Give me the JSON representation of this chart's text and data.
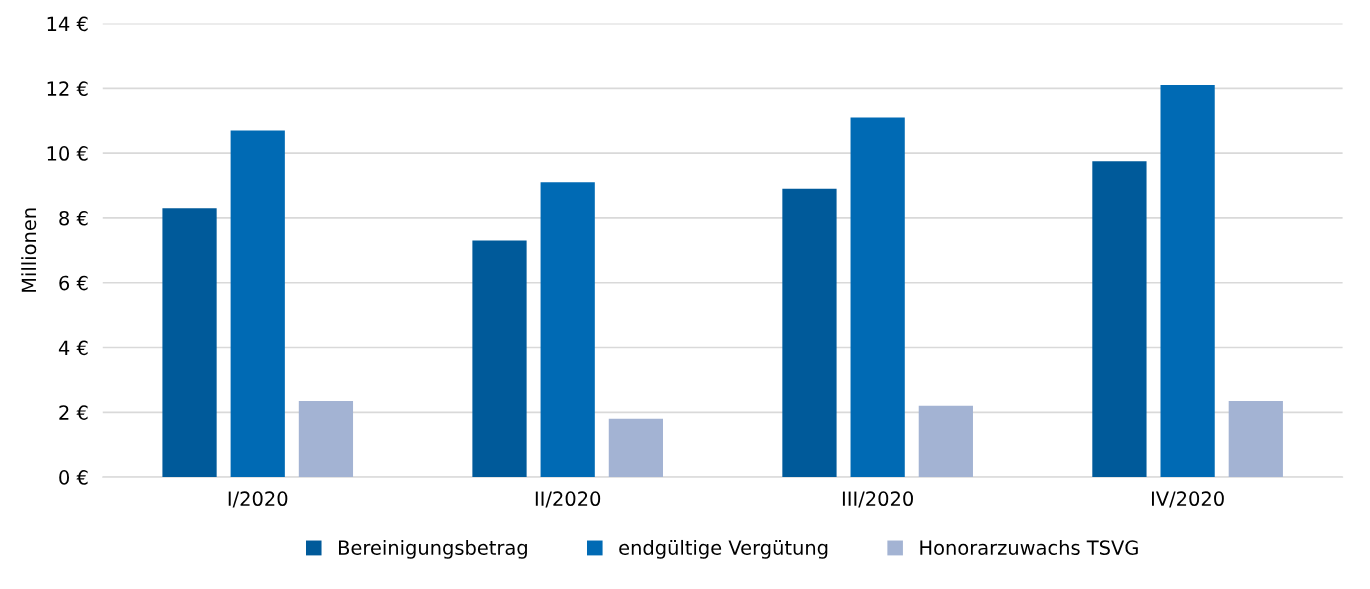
{
  "chart_data": {
    "type": "bar",
    "ylabel": "Millionen",
    "categories": [
      "I/2020",
      "II/2020",
      "III/2020",
      "IV/2020"
    ],
    "series": [
      {
        "name": "Bereinigungsbetrag",
        "color": "#005a9a",
        "values": [
          8.3,
          7.3,
          8.9,
          9.75
        ]
      },
      {
        "name": "endgültige Vergütung",
        "color": "#006ab4",
        "values": [
          10.7,
          9.1,
          11.1,
          12.1
        ]
      },
      {
        "name": "Honorarzuwachs TSVG",
        "color": "#a3b3d3",
        "values": [
          2.35,
          1.8,
          2.2,
          2.35
        ]
      }
    ],
    "ylim": [
      0,
      14
    ],
    "yticks": [
      {
        "value": 0,
        "label": "0 €"
      },
      {
        "value": 2,
        "label": "2 €"
      },
      {
        "value": 4,
        "label": "4 €"
      },
      {
        "value": 6,
        "label": "6 €"
      },
      {
        "value": 8,
        "label": "8 €"
      },
      {
        "value": 10,
        "label": "10 €"
      },
      {
        "value": 12,
        "label": "12 €"
      },
      {
        "value": 14,
        "label": "14 €"
      }
    ],
    "grid": "y",
    "legend": "bottom"
  }
}
